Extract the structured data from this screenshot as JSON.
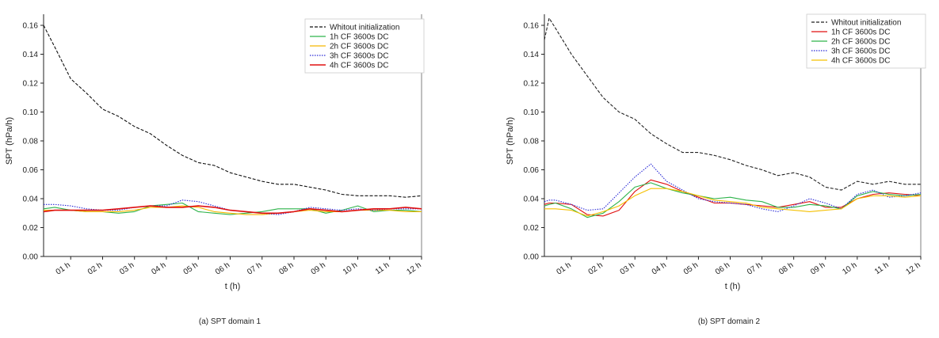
{
  "chart_data": [
    {
      "type": "line",
      "caption": "(a) SPT domain 1",
      "xlabel": "t (h)",
      "ylabel": "SPT (hPa/h)",
      "xlim": [
        0.15,
        12
      ],
      "ylim": [
        0,
        0.16
      ],
      "xticks": [
        1,
        2,
        3,
        4,
        5,
        6,
        7,
        8,
        9,
        10,
        11,
        12
      ],
      "xtick_labels": [
        "01 h",
        "02 h",
        "03 h",
        "04 h",
        "05 h",
        "06 h",
        "07 h",
        "08 h",
        "09 h",
        "10 h",
        "11 h",
        "12 h"
      ],
      "yticks": [
        0,
        0.02,
        0.04,
        0.06,
        0.08,
        0.1,
        0.12,
        0.14,
        0.16
      ],
      "ytick_labels": [
        "0.00",
        "0.02",
        "0.04",
        "0.06",
        "0.08",
        "0.10",
        "0.12",
        "0.14",
        "0.16"
      ],
      "legend_position": "top-right",
      "x": [
        0.15,
        0.5,
        1,
        1.5,
        2,
        2.5,
        3,
        3.5,
        4,
        4.5,
        5,
        5.5,
        6,
        6.5,
        7,
        7.5,
        8,
        8.5,
        9,
        9.5,
        10,
        10.5,
        11,
        11.5,
        12
      ],
      "series": [
        {
          "name": "Whitout initialization",
          "color": "#111111",
          "style": "dashed",
          "values": [
            0.16,
            0.145,
            0.123,
            0.113,
            0.102,
            0.097,
            0.09,
            0.085,
            0.077,
            0.07,
            0.065,
            0.063,
            0.058,
            0.055,
            0.052,
            0.05,
            0.05,
            0.048,
            0.046,
            0.043,
            0.042,
            0.042,
            0.042,
            0.041,
            0.042
          ]
        },
        {
          "name": "1h CF 3600s DC",
          "color": "#2db34a",
          "style": "solid",
          "values": [
            0.033,
            0.034,
            0.032,
            0.031,
            0.031,
            0.03,
            0.031,
            0.035,
            0.036,
            0.037,
            0.031,
            0.03,
            0.029,
            0.03,
            0.031,
            0.033,
            0.033,
            0.033,
            0.03,
            0.032,
            0.035,
            0.031,
            0.032,
            0.032,
            0.031
          ]
        },
        {
          "name": "2h CF 3600s DC",
          "color": "#f5b800",
          "style": "solid",
          "values": [
            0.032,
            0.032,
            0.032,
            0.031,
            0.031,
            0.031,
            0.032,
            0.034,
            0.034,
            0.035,
            0.034,
            0.031,
            0.03,
            0.029,
            0.029,
            0.03,
            0.031,
            0.032,
            0.031,
            0.031,
            0.032,
            0.032,
            0.032,
            0.031,
            0.031
          ]
        },
        {
          "name": "3h CF 3600s DC",
          "color": "#2a2ad6",
          "style": "dotted",
          "values": [
            0.036,
            0.036,
            0.035,
            0.033,
            0.032,
            0.032,
            0.034,
            0.035,
            0.035,
            0.039,
            0.038,
            0.035,
            0.032,
            0.031,
            0.03,
            0.029,
            0.031,
            0.034,
            0.033,
            0.032,
            0.033,
            0.032,
            0.033,
            0.033,
            0.033
          ]
        },
        {
          "name": "4h CF 3600s DC",
          "color": "#e01010",
          "style": "solid-thick",
          "values": [
            0.031,
            0.032,
            0.032,
            0.032,
            0.032,
            0.033,
            0.034,
            0.035,
            0.034,
            0.034,
            0.035,
            0.034,
            0.032,
            0.031,
            0.03,
            0.03,
            0.031,
            0.033,
            0.032,
            0.031,
            0.032,
            0.033,
            0.033,
            0.034,
            0.033
          ]
        }
      ]
    },
    {
      "type": "line",
      "caption": "(b) SPT domain 2",
      "xlabel": "t (h)",
      "ylabel": "SPT (hPa/h)",
      "xlim": [
        0.15,
        12
      ],
      "ylim": [
        0,
        0.16
      ],
      "xticks": [
        1,
        2,
        3,
        4,
        5,
        6,
        7,
        8,
        9,
        10,
        11,
        12
      ],
      "xtick_labels": [
        "01 h",
        "02 h",
        "03 h",
        "04 h",
        "05 h",
        "06 h",
        "07 h",
        "08 h",
        "09 h",
        "10 h",
        "11 h",
        "12 h"
      ],
      "yticks": [
        0,
        0.02,
        0.04,
        0.06,
        0.08,
        0.1,
        0.12,
        0.14,
        0.16
      ],
      "ytick_labels": [
        "0.00",
        "0.02",
        "0.04",
        "0.06",
        "0.08",
        "0.10",
        "0.12",
        "0.14",
        "0.16"
      ],
      "legend_position": "top-right",
      "x": [
        0.15,
        0.3,
        0.5,
        1,
        1.5,
        2,
        2.5,
        3,
        3.5,
        4,
        4.5,
        5,
        5.5,
        6,
        6.5,
        7,
        7.5,
        8,
        8.5,
        9,
        9.5,
        10,
        10.5,
        11,
        11.5,
        12
      ],
      "series": [
        {
          "name": "Whitout initialization",
          "color": "#222222",
          "style": "dashed",
          "values": [
            0.15,
            0.165,
            0.158,
            0.14,
            0.125,
            0.11,
            0.1,
            0.095,
            0.085,
            0.078,
            0.072,
            0.072,
            0.07,
            0.067,
            0.063,
            0.06,
            0.056,
            0.058,
            0.055,
            0.048,
            0.046,
            0.052,
            0.05,
            0.052,
            0.05,
            0.05
          ]
        },
        {
          "name": "1h CF 3600s DC",
          "color": "#e01010",
          "style": "solid",
          "values": [
            0.036,
            0.037,
            0.037,
            0.036,
            0.029,
            0.028,
            0.032,
            0.045,
            0.053,
            0.05,
            0.045,
            0.041,
            0.037,
            0.037,
            0.036,
            0.035,
            0.034,
            0.036,
            0.038,
            0.034,
            0.034,
            0.04,
            0.043,
            0.044,
            0.043,
            0.042
          ]
        },
        {
          "name": "2h CF 3600s DC",
          "color": "#2db34a",
          "style": "solid",
          "values": [
            0.035,
            0.036,
            0.037,
            0.033,
            0.027,
            0.03,
            0.038,
            0.048,
            0.051,
            0.047,
            0.044,
            0.042,
            0.04,
            0.041,
            0.039,
            0.038,
            0.034,
            0.034,
            0.036,
            0.035,
            0.033,
            0.042,
            0.045,
            0.043,
            0.042,
            0.043
          ]
        },
        {
          "name": "3h CF 3600s DC",
          "color": "#2a2ad6",
          "style": "dotted",
          "values": [
            0.038,
            0.039,
            0.039,
            0.036,
            0.032,
            0.033,
            0.044,
            0.055,
            0.064,
            0.052,
            0.046,
            0.04,
            0.038,
            0.037,
            0.036,
            0.033,
            0.031,
            0.035,
            0.04,
            0.037,
            0.033,
            0.043,
            0.046,
            0.041,
            0.042,
            0.044
          ]
        },
        {
          "name": "4h CF 3600s DC",
          "color": "#f5c000",
          "style": "solid",
          "values": [
            0.033,
            0.033,
            0.033,
            0.032,
            0.028,
            0.031,
            0.035,
            0.042,
            0.047,
            0.047,
            0.045,
            0.042,
            0.039,
            0.038,
            0.037,
            0.034,
            0.033,
            0.032,
            0.031,
            0.032,
            0.033,
            0.04,
            0.042,
            0.042,
            0.041,
            0.042
          ]
        }
      ]
    }
  ]
}
